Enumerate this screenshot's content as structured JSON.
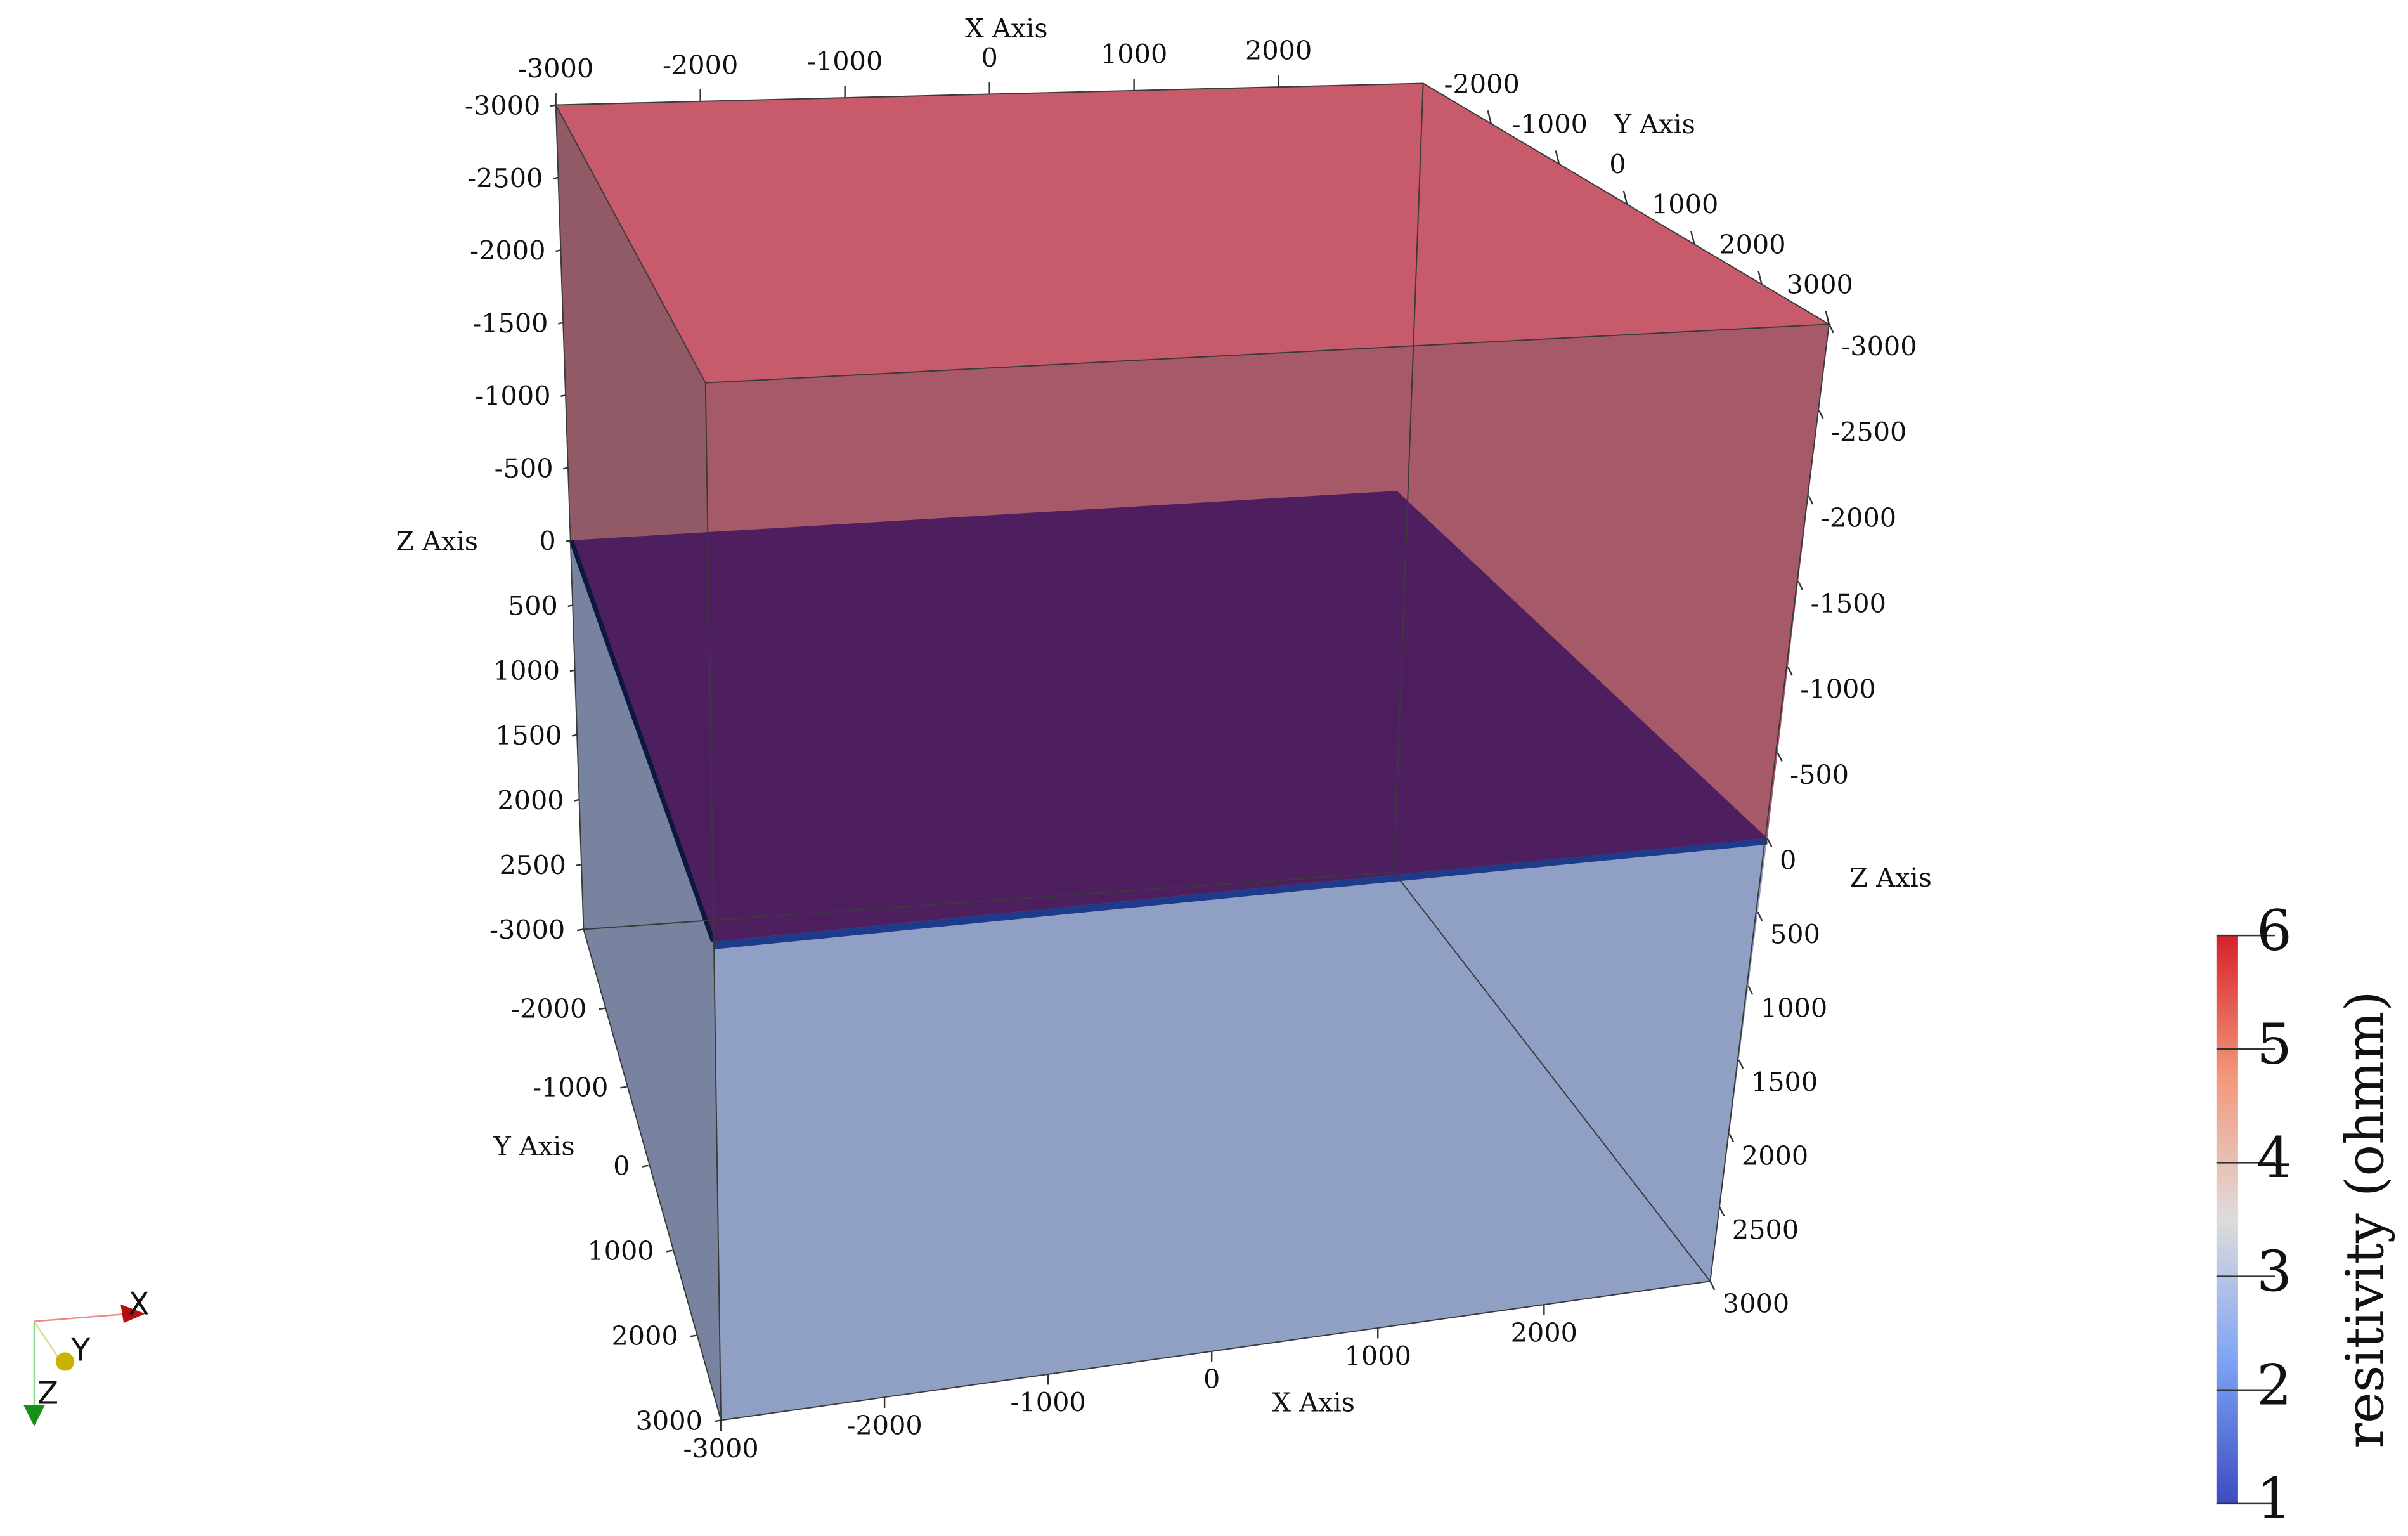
{
  "axes": [
    {
      "title": "X Axis",
      "lim": [
        -3000,
        3000
      ],
      "ticks": [
        -3000,
        -2000,
        -1000,
        0,
        1000,
        2000
      ]
    },
    {
      "title": "Y Axis",
      "lim": [
        -3000,
        3000
      ],
      "ticks": [
        -2000,
        -1000,
        0,
        1000,
        2000,
        3000
      ]
    },
    {
      "title": "Z Axis",
      "lim": [
        -3000,
        3000
      ],
      "ticks": [
        -3000,
        -2500,
        -2000,
        -1500,
        -1000,
        -500,
        0,
        500,
        1000,
        1500,
        2000,
        2500
      ]
    },
    {
      "title": "Y Axis",
      "lim": [
        -3000,
        3000
      ],
      "ticks": [
        -3000,
        -2000,
        -1000,
        0,
        1000,
        2000,
        3000
      ]
    },
    {
      "title": "X Axis",
      "lim": [
        -3000,
        3000
      ],
      "ticks": [
        -3000,
        -2000,
        -1000,
        0,
        1000,
        2000
      ]
    },
    {
      "title": "Z Axis",
      "lim": [
        -3000,
        3000
      ],
      "ticks": [
        -3000,
        -2500,
        -2000,
        -1500,
        -1000,
        -500,
        0,
        500,
        1000,
        1500,
        2000,
        2500,
        3000
      ]
    }
  ],
  "colorbar": {
    "title": "resitivity (ohmm)",
    "range": [
      1,
      6
    ],
    "ticks": [
      1,
      2,
      3,
      4,
      5,
      6
    ]
  },
  "orientation_axes": [
    "X",
    "Y",
    "Z"
  ]
}
